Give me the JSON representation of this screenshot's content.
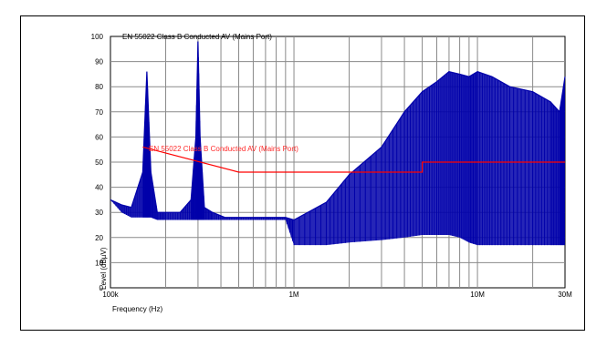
{
  "chart_data": {
    "type": "line",
    "title": "EN 55022 Class B Conducted AV (Mains Port)",
    "xlabel": "Frequency (Hz)",
    "ylabel": "Level (dBµV)",
    "x_scale": "log",
    "xlim": [
      100000,
      30000000
    ],
    "ylim": [
      0,
      100
    ],
    "x_ticks": [
      {
        "value": 100000,
        "label": "100k"
      },
      {
        "value": 1000000,
        "label": "1M"
      },
      {
        "value": 10000000,
        "label": "10M"
      },
      {
        "value": 30000000,
        "label": "30M"
      }
    ],
    "y_ticks": [
      0,
      10,
      20,
      30,
      40,
      50,
      60,
      70,
      80,
      90,
      100
    ],
    "grid": true,
    "series": [
      {
        "name": "EN 55022 Class B Conducted AV (Mains Port)",
        "color": "#ff0000",
        "x": [
          150000,
          500000,
          5000000,
          5000000,
          30000000
        ],
        "y": [
          56,
          46,
          46,
          50,
          50
        ]
      },
      {
        "color": "#0000aa",
        "x": [
          100000,
          115000,
          130000,
          150000,
          158000,
          166000,
          180000,
          200000,
          240000,
          275000,
          292000,
          300000,
          308000,
          325000,
          360000,
          420000,
          500000,
          600000,
          700000,
          800000,
          900000,
          1000000,
          1500000,
          2000000,
          3000000,
          4000000,
          5000000,
          6000000,
          7000000,
          8000000,
          9000000,
          10000000,
          12000000,
          15000000,
          20000000,
          25000000,
          28000000,
          30000000
        ],
        "y": [
          35,
          33,
          32,
          46,
          86,
          46,
          30,
          30,
          30,
          35,
          60,
          98,
          60,
          32,
          30,
          28,
          28,
          28,
          28,
          28,
          28,
          27,
          34,
          45,
          56,
          70,
          78,
          82,
          86,
          85,
          84,
          86,
          84,
          80,
          78,
          74,
          70,
          84
        ],
        "envelope_low": [
          35,
          30,
          28,
          28,
          28,
          28,
          27,
          27,
          27,
          27,
          27,
          27,
          27,
          27,
          27,
          27,
          27,
          27,
          27,
          27,
          27,
          17,
          17,
          18,
          19,
          20,
          21,
          21,
          21,
          20,
          18,
          17,
          17,
          17,
          17,
          17,
          17,
          17
        ]
      }
    ]
  }
}
